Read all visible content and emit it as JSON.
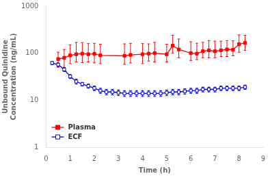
{
  "chart_data": {
    "type": "line",
    "xlabel": "Time (h)",
    "ylabel": "Unbound Quinidine\nConcentration (ng/mL)",
    "log": "y",
    "grid": false,
    "legend": "lower left",
    "xlim": [
      0,
      9
    ],
    "ylim": [
      1,
      1000
    ],
    "xticks": [
      0,
      1,
      2,
      3,
      4,
      5,
      6,
      7,
      8,
      9
    ],
    "yticks": [
      1,
      10,
      100,
      1000
    ],
    "series": [
      {
        "name": "Plasma",
        "color": "#FF0000",
        "marker": "square",
        "x": [
          0.5,
          0.75,
          1.0,
          1.25,
          1.5,
          1.75,
          2.0,
          2.25,
          3.25,
          3.5,
          4.0,
          4.25,
          4.5,
          5.0,
          5.25,
          5.5,
          6.0,
          6.25,
          6.5,
          6.75,
          7.0,
          7.25,
          7.5,
          7.75,
          8.0,
          8.25
        ],
        "values": [
          75,
          80,
          90,
          95,
          98,
          95,
          97,
          90,
          88,
          92,
          95,
          98,
          100,
          95,
          145,
          120,
          100,
          98,
          110,
          115,
          110,
          115,
          120,
          118,
          155,
          165
        ],
        "error_upper": [
          30,
          40,
          60,
          75,
          70,
          65,
          65,
          65,
          70,
          70,
          65,
          60,
          70,
          60,
          95,
          80,
          75,
          65,
          60,
          70,
          70,
          65,
          65,
          65,
          90,
          75
        ],
        "error_lower": [
          25,
          30,
          30,
          30,
          35,
          30,
          35,
          30,
          30,
          30,
          35,
          30,
          35,
          30,
          45,
          40,
          30,
          25,
          30,
          35,
          30,
          30,
          35,
          30,
          50,
          50
        ]
      },
      {
        "name": "ECF",
        "color": "#0000CC",
        "marker": "hollow_square",
        "x": [
          0.25,
          0.5,
          0.75,
          1.0,
          1.25,
          1.5,
          1.75,
          2.0,
          2.25,
          2.5,
          2.75,
          3.0,
          3.25,
          3.5,
          3.75,
          4.0,
          4.25,
          4.5,
          4.75,
          5.0,
          5.25,
          5.5,
          5.75,
          6.0,
          6.25,
          6.5,
          6.75,
          7.0,
          7.25,
          7.5,
          7.75,
          8.0,
          8.25
        ],
        "values": [
          62,
          57,
          45,
          32,
          25,
          22,
          20,
          18,
          16,
          15,
          15,
          14.5,
          14,
          14,
          14,
          14,
          14,
          14,
          14,
          14.5,
          15,
          15,
          15.5,
          16,
          16,
          17,
          17,
          17,
          18,
          18,
          18,
          18,
          19
        ],
        "error_upper": [
          5,
          5,
          4,
          3,
          3,
          2,
          2,
          2,
          2,
          2,
          2,
          2,
          2,
          2,
          2,
          2,
          2,
          2,
          2,
          2,
          2,
          2,
          2,
          2,
          2,
          2,
          2,
          2,
          2,
          2,
          2,
          2,
          2
        ],
        "error_lower": [
          5,
          5,
          4,
          3,
          3,
          2,
          2,
          2,
          2,
          2,
          2,
          2,
          2,
          2,
          2,
          2,
          2,
          2,
          2,
          2,
          2,
          2,
          2,
          2,
          2,
          2,
          2,
          2,
          2,
          2,
          2,
          2,
          2
        ]
      }
    ]
  }
}
